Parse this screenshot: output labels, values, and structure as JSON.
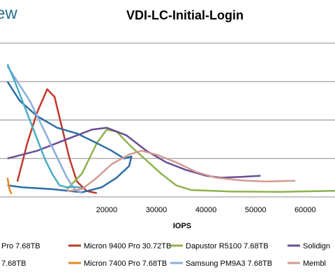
{
  "logo_text": "ew",
  "chart_data": {
    "type": "line",
    "title": "VDI-LC-Initial-Login",
    "xlabel": "IOPS",
    "ylabel": "",
    "xlim": [
      -1500,
      66000
    ],
    "ylim": [
      0,
      40
    ],
    "x_ticks": [
      20000,
      30000,
      40000,
      50000,
      60000
    ],
    "x_tick_labels": [
      "20000",
      "30000",
      "40000",
      "50000",
      "60000"
    ],
    "gridlines_y": [
      0,
      10,
      20,
      30,
      40
    ],
    "grid": true,
    "legend_position": "bottom",
    "series": [
      {
        "name": "Micron 9400 Pro 30.72TB",
        "color": "#c0392b",
        "points": [
          [
            2000,
            4
          ],
          [
            4000,
            14
          ],
          [
            6000,
            22
          ],
          [
            8000,
            28
          ],
          [
            9500,
            26
          ],
          [
            11000,
            18
          ],
          [
            12500,
            10
          ],
          [
            14000,
            4
          ],
          [
            16000,
            1.5
          ],
          [
            18000,
            1
          ]
        ]
      },
      {
        "name": "Dapustor R5100 7.68TB",
        "color": "#8db34e",
        "points": [
          [
            12000,
            2
          ],
          [
            15000,
            6
          ],
          [
            18000,
            14
          ],
          [
            20000,
            17.5
          ],
          [
            22000,
            17
          ],
          [
            25000,
            13
          ],
          [
            28000,
            9.5
          ],
          [
            31000,
            6
          ],
          [
            34000,
            3
          ],
          [
            37000,
            1.8
          ],
          [
            45000,
            1.4
          ],
          [
            55000,
            1.3
          ],
          [
            66000,
            1.6
          ]
        ]
      },
      {
        "name": "Solidign",
        "color": "#6a4c93",
        "points": [
          [
            0,
            10
          ],
          [
            6000,
            12
          ],
          [
            12000,
            15
          ],
          [
            17000,
            17.5
          ],
          [
            20000,
            18
          ],
          [
            24000,
            16
          ],
          [
            28000,
            12
          ],
          [
            32000,
            9
          ],
          [
            36000,
            7
          ],
          [
            40000,
            5.5
          ],
          [
            43000,
            5
          ],
          [
            47000,
            5.2
          ],
          [
            51000,
            5.5
          ]
        ]
      },
      {
        "name": "7.68TB",
        "color": "#2e6da4",
        "points": [
          [
            0,
            30
          ],
          [
            2500,
            25
          ],
          [
            6000,
            21
          ],
          [
            10000,
            18
          ],
          [
            14000,
            16.5
          ],
          [
            18000,
            14
          ],
          [
            21000,
            12
          ],
          [
            23500,
            10
          ],
          [
            25000,
            10.5
          ],
          [
            24500,
            8
          ],
          [
            22000,
            5
          ],
          [
            19000,
            2.5
          ],
          [
            15000,
            1.2
          ],
          [
            9000,
            2
          ],
          [
            3000,
            2.5
          ],
          [
            0,
            3
          ]
        ]
      },
      {
        "name": "Micron 7400 Pro 7.68TB",
        "color": "#e8871e",
        "points": [
          [
            0,
            5
          ],
          [
            400,
            2
          ],
          [
            800,
            0.8
          ]
        ]
      },
      {
        "name": "Samsung PM9A3 7.68TB",
        "color": "#8aaedb",
        "points": [
          [
            0,
            34
          ],
          [
            1500,
            31
          ],
          [
            3000,
            28
          ],
          [
            4500,
            25
          ],
          [
            6000,
            21
          ],
          [
            7500,
            17
          ],
          [
            9000,
            13
          ],
          [
            10500,
            9
          ],
          [
            12000,
            5
          ],
          [
            13500,
            2
          ],
          [
            15000,
            1
          ]
        ]
      },
      {
        "name": "Membl",
        "color": "#d49a95",
        "points": [
          [
            12000,
            1.5
          ],
          [
            15000,
            2
          ],
          [
            18000,
            5
          ],
          [
            21000,
            8.5
          ],
          [
            24500,
            11
          ],
          [
            27000,
            12
          ],
          [
            30000,
            11
          ],
          [
            34000,
            9
          ],
          [
            38000,
            6.5
          ],
          [
            42000,
            5
          ],
          [
            47000,
            4.3
          ],
          [
            52000,
            4
          ],
          [
            58000,
            4.2
          ]
        ]
      },
      {
        "name": "Pro 7.68TB",
        "color": "#4bacc6",
        "points": [
          [
            0,
            34.5
          ],
          [
            1500,
            30
          ],
          [
            3000,
            25
          ],
          [
            4500,
            20
          ],
          [
            6000,
            15
          ],
          [
            7500,
            10
          ],
          [
            9000,
            6
          ],
          [
            10500,
            3
          ],
          [
            12000,
            2.5
          ],
          [
            13500,
            2.6
          ],
          [
            15000,
            2.4
          ]
        ]
      }
    ],
    "legend": [
      {
        "label": "Pro 7.68TB",
        "color": "#4bacc6"
      },
      {
        "label": "Micron 9400 Pro 30.72TB",
        "color": "#c0392b"
      },
      {
        "label": "Dapustor R5100 7.68TB",
        "color": "#8db34e"
      },
      {
        "label": "Solidign",
        "color": "#6a4c93"
      },
      {
        "label": "7.68TB",
        "color": "#2e6da4"
      },
      {
        "label": "Micron 7400 Pro 7.68TB",
        "color": "#e8871e"
      },
      {
        "label": "Samsung PM9A3 7.68TB",
        "color": "#8aaedb"
      },
      {
        "label": "Membl",
        "color": "#d49a95"
      }
    ]
  }
}
